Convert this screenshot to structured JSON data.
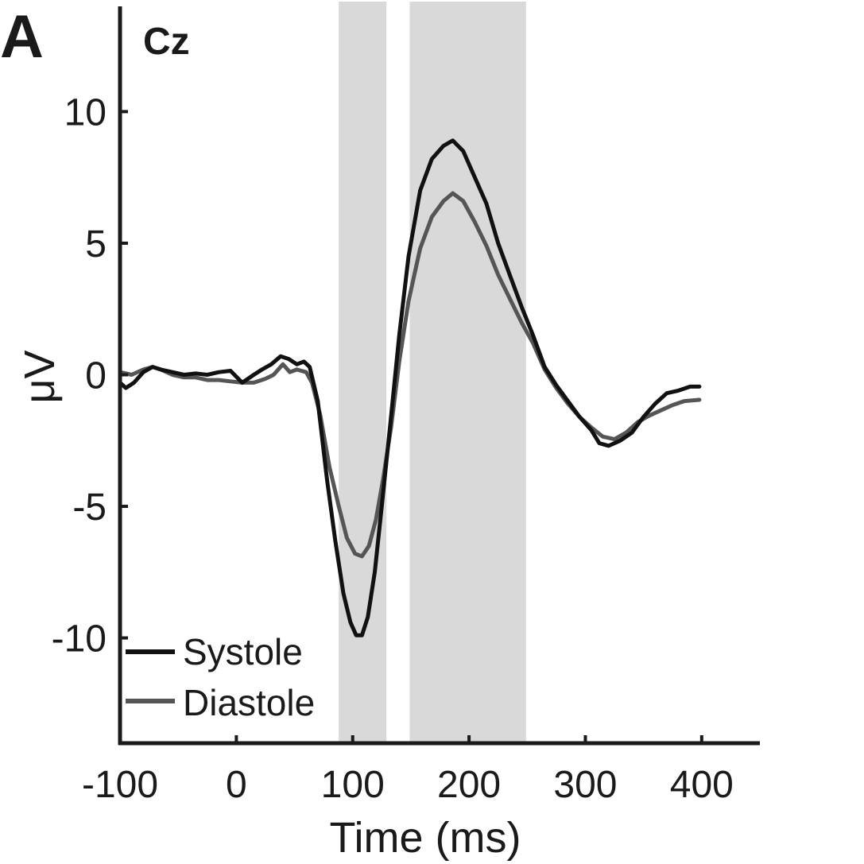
{
  "chart_data": {
    "type": "line",
    "panel_label": "A",
    "title": "Cz",
    "xlabel": "Time (ms)",
    "ylabel": "μV",
    "xlim": [
      -100,
      450
    ],
    "ylim": [
      -14,
      14
    ],
    "xticks": [
      -100,
      0,
      100,
      200,
      300,
      400
    ],
    "yticks": [
      10,
      5,
      0,
      -5,
      -10
    ],
    "grid": false,
    "legend_position": "bottom-left",
    "shaded_windows": [
      {
        "x0": 88,
        "x1": 129
      },
      {
        "x0": 149,
        "x1": 249
      }
    ],
    "colors": {
      "shade": "#d9d9d9",
      "systole": "#111111",
      "diastole": "#555555",
      "axis": "#1a1a1a"
    },
    "series": [
      {
        "name": "Systole",
        "color": "#111111",
        "points": [
          [
            -100,
            -0.3
          ],
          [
            -95,
            -0.5
          ],
          [
            -88,
            -0.3
          ],
          [
            -80,
            0.1
          ],
          [
            -72,
            0.3
          ],
          [
            -65,
            0.2
          ],
          [
            -55,
            0.1
          ],
          [
            -45,
            0.0
          ],
          [
            -35,
            0.05
          ],
          [
            -25,
            0.0
          ],
          [
            -15,
            0.1
          ],
          [
            -5,
            0.15
          ],
          [
            5,
            -0.3
          ],
          [
            15,
            0.0
          ],
          [
            22,
            0.2
          ],
          [
            30,
            0.4
          ],
          [
            38,
            0.7
          ],
          [
            45,
            0.6
          ],
          [
            52,
            0.4
          ],
          [
            58,
            0.5
          ],
          [
            63,
            0.3
          ],
          [
            70,
            -1.0
          ],
          [
            78,
            -4.0
          ],
          [
            85,
            -6.3
          ],
          [
            92,
            -8.3
          ],
          [
            98,
            -9.4
          ],
          [
            103,
            -9.9
          ],
          [
            108,
            -9.9
          ],
          [
            113,
            -9.2
          ],
          [
            119,
            -7.5
          ],
          [
            125,
            -5.0
          ],
          [
            132,
            -2.0
          ],
          [
            140,
            1.5
          ],
          [
            148,
            4.5
          ],
          [
            158,
            7.0
          ],
          [
            168,
            8.2
          ],
          [
            178,
            8.7
          ],
          [
            186,
            8.9
          ],
          [
            195,
            8.5
          ],
          [
            205,
            7.5
          ],
          [
            215,
            6.5
          ],
          [
            225,
            5.0
          ],
          [
            235,
            3.8
          ],
          [
            245,
            2.6
          ],
          [
            255,
            1.5
          ],
          [
            265,
            0.3
          ],
          [
            275,
            -0.4
          ],
          [
            285,
            -1.0
          ],
          [
            295,
            -1.6
          ],
          [
            305,
            -2.1
          ],
          [
            312,
            -2.6
          ],
          [
            320,
            -2.7
          ],
          [
            330,
            -2.5
          ],
          [
            340,
            -2.2
          ],
          [
            350,
            -1.6
          ],
          [
            360,
            -1.1
          ],
          [
            370,
            -0.7
          ],
          [
            380,
            -0.6
          ],
          [
            390,
            -0.45
          ],
          [
            398,
            -0.45
          ]
        ]
      },
      {
        "name": "Diastole",
        "color": "#555555",
        "points": [
          [
            -100,
            0.1
          ],
          [
            -90,
            0.0
          ],
          [
            -80,
            0.2
          ],
          [
            -72,
            0.3
          ],
          [
            -65,
            0.2
          ],
          [
            -55,
            0.0
          ],
          [
            -45,
            -0.1
          ],
          [
            -35,
            -0.1
          ],
          [
            -25,
            -0.2
          ],
          [
            -15,
            -0.2
          ],
          [
            -5,
            -0.25
          ],
          [
            5,
            -0.3
          ],
          [
            15,
            -0.3
          ],
          [
            25,
            -0.15
          ],
          [
            32,
            0.0
          ],
          [
            40,
            0.4
          ],
          [
            46,
            0.1
          ],
          [
            52,
            0.2
          ],
          [
            60,
            0.1
          ],
          [
            65,
            -0.3
          ],
          [
            72,
            -1.5
          ],
          [
            80,
            -3.5
          ],
          [
            88,
            -5.0
          ],
          [
            95,
            -6.2
          ],
          [
            102,
            -6.8
          ],
          [
            108,
            -6.9
          ],
          [
            114,
            -6.5
          ],
          [
            120,
            -5.5
          ],
          [
            126,
            -4.0
          ],
          [
            133,
            -2.0
          ],
          [
            140,
            0.5
          ],
          [
            148,
            2.8
          ],
          [
            158,
            4.8
          ],
          [
            168,
            6.0
          ],
          [
            178,
            6.6
          ],
          [
            186,
            6.9
          ],
          [
            195,
            6.6
          ],
          [
            205,
            5.8
          ],
          [
            215,
            4.9
          ],
          [
            225,
            3.8
          ],
          [
            235,
            2.9
          ],
          [
            245,
            2.0
          ],
          [
            255,
            1.2
          ],
          [
            265,
            0.2
          ],
          [
            275,
            -0.5
          ],
          [
            285,
            -1.1
          ],
          [
            295,
            -1.6
          ],
          [
            305,
            -2.0
          ],
          [
            315,
            -2.35
          ],
          [
            325,
            -2.45
          ],
          [
            335,
            -2.2
          ],
          [
            345,
            -1.8
          ],
          [
            355,
            -1.55
          ],
          [
            365,
            -1.35
          ],
          [
            375,
            -1.15
          ],
          [
            385,
            -1.0
          ],
          [
            398,
            -0.95
          ]
        ]
      }
    ]
  }
}
